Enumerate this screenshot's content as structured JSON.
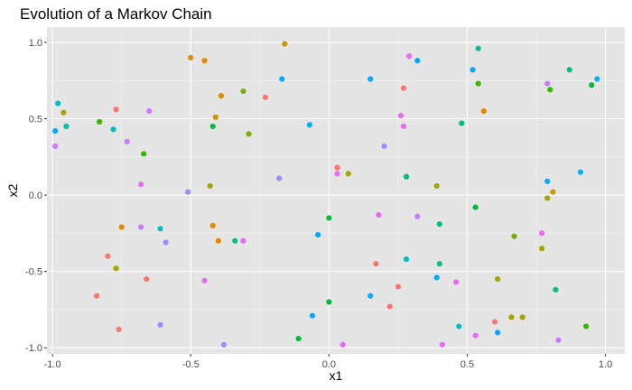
{
  "chart_data": {
    "type": "scatter",
    "title": "Evolution of a Markov Chain",
    "xlabel": "x1",
    "ylabel": "x2",
    "xlim": [
      -1.02,
      1.07
    ],
    "ylim": [
      -1.04,
      1.1
    ],
    "x_ticks": [
      -1.0,
      -0.5,
      0.0,
      0.5,
      1.0
    ],
    "y_ticks": [
      -1.0,
      -0.5,
      0.0,
      0.5,
      1.0
    ],
    "x_tick_labels": [
      "-1.0",
      "-0.5",
      "0.0",
      "0.5",
      "1.0"
    ],
    "y_tick_labels": [
      "-1.0",
      "-0.5",
      "0.0",
      "0.5",
      "1.0"
    ],
    "grid": true,
    "legend": "none",
    "background": "#e5e5e5",
    "points": [
      {
        "x": -0.98,
        "y": 0.6,
        "color": "#00bfc4"
      },
      {
        "x": -0.96,
        "y": 0.54,
        "color": "#a3a500"
      },
      {
        "x": -0.95,
        "y": 0.45,
        "color": "#00bfa0"
      },
      {
        "x": -0.99,
        "y": 0.42,
        "color": "#00a9ff"
      },
      {
        "x": -0.99,
        "y": 0.32,
        "color": "#c77cff"
      },
      {
        "x": -0.83,
        "y": 0.48,
        "color": "#39b600"
      },
      {
        "x": -0.77,
        "y": 0.56,
        "color": "#f8766d"
      },
      {
        "x": -0.78,
        "y": 0.43,
        "color": "#00bfc4"
      },
      {
        "x": -0.73,
        "y": 0.35,
        "color": "#c77cff"
      },
      {
        "x": -0.65,
        "y": 0.55,
        "color": "#c77cff"
      },
      {
        "x": -0.67,
        "y": 0.27,
        "color": "#39b600"
      },
      {
        "x": -0.68,
        "y": 0.07,
        "color": "#e76bf3"
      },
      {
        "x": -0.5,
        "y": 0.9,
        "color": "#de8c00"
      },
      {
        "x": -0.45,
        "y": 0.88,
        "color": "#e58700"
      },
      {
        "x": -0.39,
        "y": 0.65,
        "color": "#de8c00"
      },
      {
        "x": -0.41,
        "y": 0.51,
        "color": "#cd9600"
      },
      {
        "x": -0.42,
        "y": 0.45,
        "color": "#00ba38"
      },
      {
        "x": -0.31,
        "y": 0.68,
        "color": "#7cae00"
      },
      {
        "x": -0.29,
        "y": 0.4,
        "color": "#7cae00"
      },
      {
        "x": -0.23,
        "y": 0.64,
        "color": "#f8766d"
      },
      {
        "x": -0.16,
        "y": 0.99,
        "color": "#cd9600"
      },
      {
        "x": -0.17,
        "y": 0.76,
        "color": "#00a9ff"
      },
      {
        "x": -0.07,
        "y": 0.46,
        "color": "#00b0f6"
      },
      {
        "x": -0.18,
        "y": 0.11,
        "color": "#9590ff"
      },
      {
        "x": -0.51,
        "y": 0.02,
        "color": "#9590ff"
      },
      {
        "x": -0.43,
        "y": 0.06,
        "color": "#a3a500"
      },
      {
        "x": -0.75,
        "y": -0.21,
        "color": "#de8c00"
      },
      {
        "x": -0.68,
        "y": -0.21,
        "color": "#c77cff"
      },
      {
        "x": -0.61,
        "y": -0.22,
        "color": "#00bfc4"
      },
      {
        "x": -0.59,
        "y": -0.31,
        "color": "#9590ff"
      },
      {
        "x": -0.8,
        "y": -0.4,
        "color": "#f8766d"
      },
      {
        "x": -0.77,
        "y": -0.48,
        "color": "#a3a500"
      },
      {
        "x": -0.66,
        "y": -0.55,
        "color": "#f8766d"
      },
      {
        "x": -0.84,
        "y": -0.66,
        "color": "#f8766d"
      },
      {
        "x": -0.76,
        "y": -0.88,
        "color": "#f8766d"
      },
      {
        "x": -0.61,
        "y": -0.85,
        "color": "#9590ff"
      },
      {
        "x": -0.42,
        "y": -0.2,
        "color": "#de8c00"
      },
      {
        "x": -0.4,
        "y": -0.3,
        "color": "#e58700"
      },
      {
        "x": -0.34,
        "y": -0.3,
        "color": "#00bf7d"
      },
      {
        "x": -0.31,
        "y": -0.3,
        "color": "#e76bf3"
      },
      {
        "x": -0.45,
        "y": -0.56,
        "color": "#e76bf3"
      },
      {
        "x": -0.38,
        "y": -0.98,
        "color": "#9590ff"
      },
      {
        "x": -0.11,
        "y": -0.94,
        "color": "#00ba38"
      },
      {
        "x": -0.06,
        "y": -0.79,
        "color": "#00a9ff"
      },
      {
        "x": -0.04,
        "y": -0.26,
        "color": "#00a9ff"
      },
      {
        "x": 0.0,
        "y": -0.15,
        "color": "#00ba38"
      },
      {
        "x": 0.0,
        "y": -0.7,
        "color": "#00ba38"
      },
      {
        "x": 0.05,
        "y": -0.98,
        "color": "#e76bf3"
      },
      {
        "x": 0.03,
        "y": 0.18,
        "color": "#f8766d"
      },
      {
        "x": 0.03,
        "y": 0.14,
        "color": "#e76bf3"
      },
      {
        "x": 0.07,
        "y": 0.14,
        "color": "#a3a500"
      },
      {
        "x": 0.15,
        "y": 0.76,
        "color": "#00a9ff"
      },
      {
        "x": 0.2,
        "y": 0.32,
        "color": "#9590ff"
      },
      {
        "x": 0.26,
        "y": 0.52,
        "color": "#e76bf3"
      },
      {
        "x": 0.27,
        "y": 0.45,
        "color": "#e76bf3"
      },
      {
        "x": 0.27,
        "y": 0.7,
        "color": "#f8766d"
      },
      {
        "x": 0.29,
        "y": 0.91,
        "color": "#e76bf3"
      },
      {
        "x": 0.32,
        "y": 0.88,
        "color": "#00a9ff"
      },
      {
        "x": 0.28,
        "y": 0.12,
        "color": "#00bf7d"
      },
      {
        "x": 0.18,
        "y": -0.13,
        "color": "#e76bf3"
      },
      {
        "x": 0.17,
        "y": -0.45,
        "color": "#f8766d"
      },
      {
        "x": 0.15,
        "y": -0.66,
        "color": "#00b0f6"
      },
      {
        "x": 0.22,
        "y": -0.73,
        "color": "#f8766d"
      },
      {
        "x": 0.25,
        "y": -0.6,
        "color": "#f8766d"
      },
      {
        "x": 0.28,
        "y": -0.42,
        "color": "#00bfc4"
      },
      {
        "x": 0.32,
        "y": -0.14,
        "color": "#c77cff"
      },
      {
        "x": 0.39,
        "y": 0.06,
        "color": "#a3a500"
      },
      {
        "x": 0.4,
        "y": -0.19,
        "color": "#00bf7d"
      },
      {
        "x": 0.4,
        "y": -0.45,
        "color": "#00bf7d"
      },
      {
        "x": 0.39,
        "y": -0.54,
        "color": "#00a9ff"
      },
      {
        "x": 0.41,
        "y": -0.98,
        "color": "#e76bf3"
      },
      {
        "x": 0.46,
        "y": -0.57,
        "color": "#e76bf3"
      },
      {
        "x": 0.47,
        "y": -0.86,
        "color": "#00bfc4"
      },
      {
        "x": 0.48,
        "y": 0.47,
        "color": "#00bf7d"
      },
      {
        "x": 0.52,
        "y": 0.82,
        "color": "#00a9ff"
      },
      {
        "x": 0.54,
        "y": 0.96,
        "color": "#00bfa0"
      },
      {
        "x": 0.54,
        "y": 0.73,
        "color": "#39b600"
      },
      {
        "x": 0.56,
        "y": 0.55,
        "color": "#e58700"
      },
      {
        "x": 0.53,
        "y": -0.08,
        "color": "#00ba38"
      },
      {
        "x": 0.53,
        "y": -0.92,
        "color": "#e76bf3"
      },
      {
        "x": 0.6,
        "y": -0.83,
        "color": "#f8766d"
      },
      {
        "x": 0.61,
        "y": -0.55,
        "color": "#a3a500"
      },
      {
        "x": 0.61,
        "y": -0.9,
        "color": "#00a9ff"
      },
      {
        "x": 0.66,
        "y": -0.8,
        "color": "#a3a500"
      },
      {
        "x": 0.67,
        "y": -0.27,
        "color": "#7cae00"
      },
      {
        "x": 0.7,
        "y": -0.8,
        "color": "#a3a500"
      },
      {
        "x": 0.77,
        "y": -0.25,
        "color": "#e76bf3"
      },
      {
        "x": 0.77,
        "y": -0.35,
        "color": "#a3a500"
      },
      {
        "x": 0.79,
        "y": 0.73,
        "color": "#c77cff"
      },
      {
        "x": 0.8,
        "y": 0.69,
        "color": "#39b600"
      },
      {
        "x": 0.79,
        "y": 0.09,
        "color": "#00a9ff"
      },
      {
        "x": 0.81,
        "y": 0.02,
        "color": "#cd9600"
      },
      {
        "x": 0.79,
        "y": -0.02,
        "color": "#a3a500"
      },
      {
        "x": 0.82,
        "y": -0.62,
        "color": "#00bf7d"
      },
      {
        "x": 0.83,
        "y": -0.95,
        "color": "#c77cff"
      },
      {
        "x": 0.87,
        "y": 0.82,
        "color": "#00bf7d"
      },
      {
        "x": 0.91,
        "y": 0.15,
        "color": "#00b0f6"
      },
      {
        "x": 0.93,
        "y": -0.86,
        "color": "#39b600"
      },
      {
        "x": 0.95,
        "y": 0.72,
        "color": "#00ba38"
      },
      {
        "x": 0.97,
        "y": 0.76,
        "color": "#00b0f6"
      }
    ]
  }
}
